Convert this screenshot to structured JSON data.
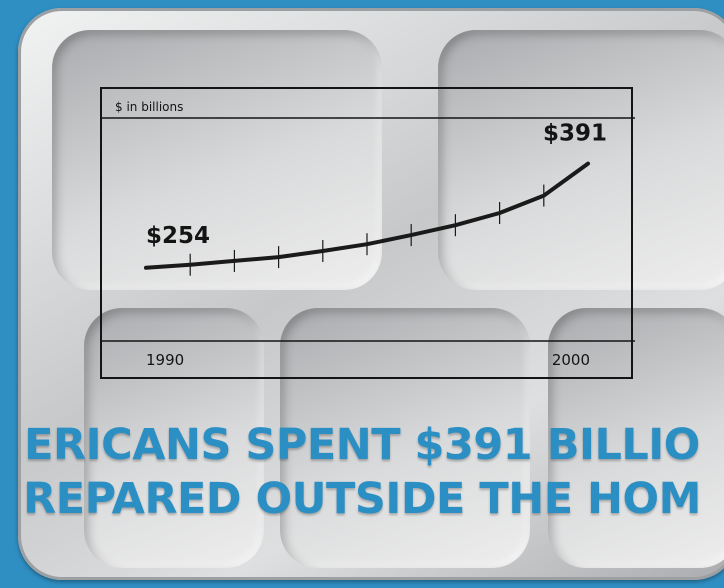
{
  "chart_data": {
    "type": "line",
    "unit_label": "$ in billions",
    "x": [
      1990,
      1991,
      1992,
      1993,
      1994,
      1995,
      1996,
      1997,
      1998,
      1999,
      2000
    ],
    "values": [
      254,
      258,
      263,
      268,
      276,
      285,
      297,
      310,
      326,
      349,
      391
    ],
    "annotations": [
      {
        "x": 1990,
        "label": "$254"
      },
      {
        "x": 2000,
        "label": "$391"
      }
    ],
    "x_tick_labels": [
      "1990",
      "2000"
    ],
    "ylim": [
      180,
      430
    ],
    "grid": false
  },
  "headline": {
    "line1": "ERICANS SPENT $391 BILLIO",
    "line2": "REPARED OUTSIDE THE HOM"
  },
  "colors": {
    "background": "#2f8fc3",
    "headline": "#2b8fc4",
    "line": "#1a1a1a"
  }
}
